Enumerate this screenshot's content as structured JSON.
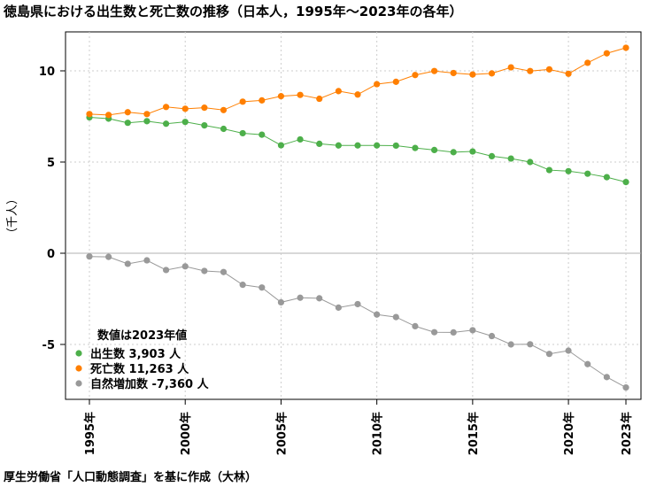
{
  "title": "徳島県における出生数と死亡数の推移（日本人，1995年～2023年の各年）",
  "source": "厚生労働省「人口動態調査」を基に作成（大林）",
  "chart_data": {
    "type": "line",
    "ylabel": "（千人）",
    "ylim": [
      -8,
      12
    ],
    "yticks": [
      -5,
      0,
      5,
      10
    ],
    "xlim": [
      1995,
      2023
    ],
    "x_tick_labels": [
      {
        "year": 1995,
        "label": "1995年"
      },
      {
        "year": 2000,
        "label": "2000年"
      },
      {
        "year": 2005,
        "label": "2005年"
      },
      {
        "year": 2010,
        "label": "2010年"
      },
      {
        "year": 2015,
        "label": "2015年"
      },
      {
        "year": 2020,
        "label": "2020年"
      },
      {
        "year": 2023,
        "label": "2023年"
      }
    ],
    "grid": true,
    "x": [
      1995,
      1996,
      1997,
      1998,
      1999,
      2000,
      2001,
      2002,
      2003,
      2004,
      2005,
      2006,
      2007,
      2008,
      2009,
      2010,
      2011,
      2012,
      2013,
      2014,
      2015,
      2016,
      2017,
      2018,
      2019,
      2020,
      2021,
      2022,
      2023
    ],
    "series": [
      {
        "key": "births",
        "color": "#4daf4a",
        "values": [
          7.45,
          7.38,
          7.15,
          7.24,
          7.1,
          7.2,
          7.01,
          6.82,
          6.58,
          6.5,
          5.92,
          6.24,
          6.0,
          5.91,
          5.91,
          5.91,
          5.9,
          5.77,
          5.66,
          5.54,
          5.58,
          5.32,
          5.19,
          5.0,
          4.56,
          4.5,
          4.36,
          4.17,
          3.903
        ]
      },
      {
        "key": "deaths",
        "color": "#ff7f00",
        "values": [
          7.63,
          7.58,
          7.73,
          7.63,
          8.02,
          7.92,
          7.98,
          7.85,
          8.31,
          8.38,
          8.61,
          8.68,
          8.47,
          8.89,
          8.7,
          9.27,
          9.4,
          9.77,
          9.99,
          9.88,
          9.8,
          9.86,
          10.19,
          9.99,
          10.08,
          9.84,
          10.44,
          10.96,
          11.263
        ]
      },
      {
        "key": "natural",
        "color": "#999999",
        "values": [
          -0.18,
          -0.2,
          -0.58,
          -0.39,
          -0.92,
          -0.72,
          -0.97,
          -1.03,
          -1.73,
          -1.88,
          -2.69,
          -2.44,
          -2.47,
          -2.98,
          -2.79,
          -3.36,
          -3.5,
          -4.0,
          -4.33,
          -4.34,
          -4.22,
          -4.54,
          -5.0,
          -4.99,
          -5.52,
          -5.34,
          -6.08,
          -6.79,
          -7.36
        ]
      }
    ],
    "legend": {
      "title": "数値は2023年値",
      "position": "bottom-left",
      "items": [
        {
          "label": "出生数 3,903 人",
          "color": "#4daf4a"
        },
        {
          "label": "死亡数 11,263 人",
          "color": "#ff7f00"
        },
        {
          "label": "自然増加数 -7,360 人",
          "color": "#999999"
        }
      ]
    }
  }
}
